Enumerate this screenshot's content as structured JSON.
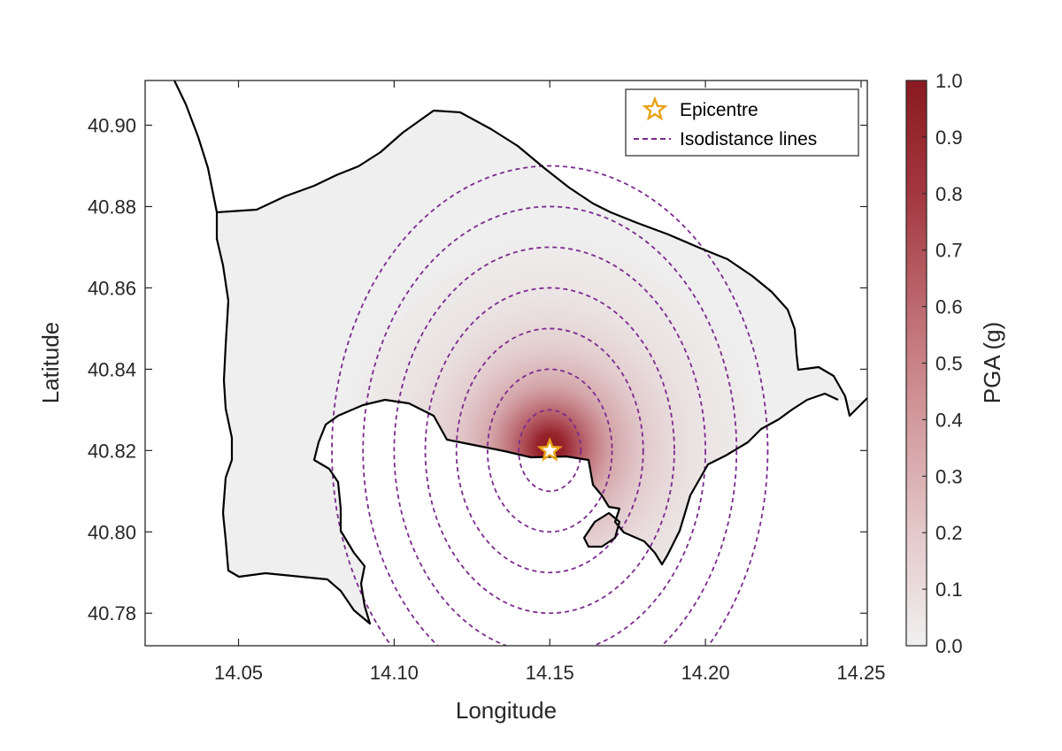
{
  "chart_data": {
    "type": "heatmap",
    "title": "",
    "xlabel": "Longitude",
    "ylabel": "Latitude",
    "xlim": [
      14.02,
      14.252
    ],
    "ylim": [
      40.772,
      40.911
    ],
    "x_ticks": [
      "14.05",
      "14.10",
      "14.15",
      "14.20",
      "14.25"
    ],
    "y_ticks": [
      "40.78",
      "40.80",
      "40.82",
      "40.84",
      "40.86",
      "40.88",
      "40.90"
    ],
    "epicentre": {
      "lon": 14.15,
      "lat": 40.82
    },
    "isodistance_radii_deg": [
      0.01,
      0.02,
      0.03,
      0.04,
      0.05,
      0.06,
      0.07
    ],
    "colorbar": {
      "label": "PGA (g)",
      "min": 0.0,
      "max": 1.0,
      "ticks": [
        "0.0",
        "0.1",
        "0.2",
        "0.3",
        "0.4",
        "0.5",
        "0.6",
        "0.7",
        "0.8",
        "0.9",
        "1.0"
      ],
      "color_low": "#f0f0f0",
      "color_high": "#8b1a22"
    },
    "legend": {
      "placement": "top-right",
      "entries": [
        {
          "label": "Epicentre",
          "marker": "star-icon",
          "color": "#e8a317"
        },
        {
          "label": "Isodistance lines",
          "marker": "dashed-line",
          "color": "#7b2a8e"
        }
      ]
    },
    "land_color": "#efefef",
    "sea_color": "#ffffff",
    "coast_color": "#000000"
  }
}
